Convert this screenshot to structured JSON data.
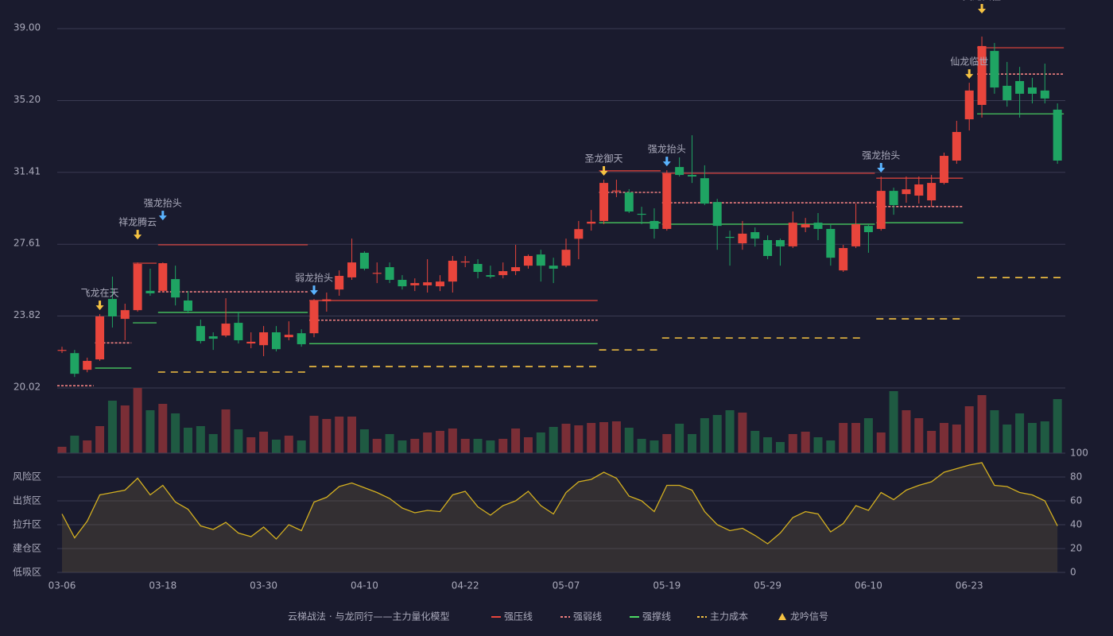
{
  "chart_data": [
    {
      "type": "candlestick",
      "categories": [
        "03-06",
        null,
        null,
        null,
        null,
        null,
        null,
        null,
        "03-18",
        null,
        null,
        null,
        null,
        null,
        null,
        null,
        "03-30",
        null,
        null,
        null,
        null,
        null,
        null,
        null,
        "04-10",
        null,
        null,
        null,
        null,
        null,
        null,
        null,
        "04-22",
        null,
        null,
        null,
        null,
        null,
        null,
        null,
        "05-07",
        null,
        null,
        null,
        null,
        null,
        null,
        null,
        "05-19",
        null,
        null,
        null,
        null,
        null,
        null,
        null,
        "05-29",
        null,
        null,
        null,
        null,
        null,
        null,
        null,
        "06-10",
        null,
        null,
        null,
        null,
        null,
        null,
        null,
        "06-23",
        null,
        null,
        null,
        null,
        null,
        null,
        null
      ],
      "open": [
        22.03,
        21.86,
        20.98,
        21.53,
        24.72,
        23.67,
        24.13,
        25.15,
        25.15,
        25.77,
        24.64,
        23.29,
        22.75,
        22.79,
        23.46,
        22.37,
        22.28,
        22.96,
        22.7,
        22.91,
        22.91,
        24.6,
        25.22,
        25.86,
        27.16,
        26.1,
        26.4,
        25.73,
        25.44,
        25.44,
        25.39,
        25.64,
        26.7,
        26.57,
        25.98,
        25.98,
        26.19,
        26.48,
        27.07,
        26.48,
        26.48,
        27.9,
        28.7,
        28.84,
        30.4,
        30.35,
        29.22,
        28.84,
        28.42,
        31.69,
        31.27,
        31.1,
        29.84,
        28.0,
        27.66,
        28.25,
        27.83,
        27.83,
        27.5,
        28.5,
        28.75,
        28.42,
        26.23,
        27.5,
        28.58,
        28.42,
        30.43,
        30.26,
        30.18,
        29.93,
        30.85,
        32.03,
        34.21,
        34.97,
        37.82,
        35.98,
        36.23,
        35.89,
        35.73,
        34.72
      ],
      "high": [
        22.2,
        22.03,
        21.62,
        23.92,
        25.9,
        24.47,
        26.65,
        26.32,
        26.65,
        26.48,
        25.14,
        23.63,
        22.96,
        24.76,
        24.05,
        22.96,
        23.29,
        23.29,
        23.54,
        23.12,
        24.72,
        25.06,
        26.23,
        27.91,
        27.24,
        26.65,
        26.65,
        25.98,
        25.81,
        26.82,
        25.98,
        26.99,
        26.99,
        26.82,
        26.48,
        26.65,
        27.58,
        27.07,
        27.32,
        26.9,
        27.91,
        28.84,
        29.42,
        31.02,
        31.02,
        30.52,
        29.59,
        29.51,
        31.52,
        32.2,
        33.37,
        31.78,
        30.01,
        28.33,
        28.84,
        28.5,
        28.08,
        27.91,
        29.34,
        29.0,
        29.26,
        28.67,
        27.58,
        29.76,
        28.67,
        31.19,
        30.6,
        31.19,
        31.19,
        31.27,
        32.45,
        34.13,
        36.14,
        38.58,
        38.24,
        37.24,
        36.98,
        36.4,
        37.15,
        35.05
      ],
      "low": [
        21.87,
        20.6,
        20.85,
        21.45,
        23.21,
        22.54,
        24.05,
        24.89,
        25.06,
        24.38,
        23.96,
        22.37,
        22.03,
        22.7,
        22.37,
        22.12,
        21.7,
        21.95,
        22.54,
        22.2,
        22.7,
        24.05,
        24.89,
        25.73,
        26.23,
        25.56,
        25.56,
        25.22,
        25.14,
        25.06,
        25.14,
        25.06,
        26.4,
        25.81,
        25.81,
        25.81,
        25.98,
        26.32,
        25.64,
        25.56,
        26.4,
        26.82,
        28.33,
        28.67,
        30.1,
        29.26,
        28.67,
        27.91,
        28.33,
        31.19,
        30.85,
        29.68,
        27.32,
        26.48,
        27.32,
        27.49,
        26.82,
        26.48,
        27.41,
        28.25,
        27.83,
        26.48,
        26.15,
        27.41,
        27.16,
        28.33,
        29.17,
        29.8,
        29.76,
        29.59,
        30.77,
        31.86,
        33.62,
        34.3,
        35.56,
        34.88,
        34.3,
        35.05,
        35.05,
        31.86
      ],
      "close": [
        22.03,
        20.77,
        21.45,
        23.8,
        23.8,
        24.13,
        26.57,
        25.02,
        26.61,
        24.8,
        24.09,
        22.5,
        22.62,
        23.42,
        22.54,
        22.46,
        22.96,
        22.07,
        22.83,
        22.33,
        24.64,
        24.7,
        25.94,
        26.65,
        26.32,
        26.1,
        25.73,
        25.39,
        25.56,
        25.6,
        25.64,
        26.74,
        26.7,
        26.15,
        25.9,
        26.19,
        26.4,
        26.99,
        26.48,
        26.32,
        27.32,
        28.41,
        28.8,
        30.85,
        30.45,
        29.34,
        29.17,
        28.42,
        31.36,
        31.27,
        31.19,
        29.76,
        28.58,
        27.95,
        28.17,
        27.91,
        26.99,
        27.5,
        28.75,
        28.67,
        28.42,
        26.9,
        27.41,
        28.67,
        28.25,
        30.43,
        29.68,
        30.51,
        30.77,
        30.85,
        32.28,
        33.54,
        35.73,
        38.08,
        35.89,
        35.22,
        35.56,
        35.56,
        35.31,
        32.03
      ],
      "up_color": "#e8453c",
      "down_color": "#1fa463",
      "ylim": [
        20.02,
        39.0
      ],
      "yticks": [
        20.02,
        23.82,
        27.61,
        31.41,
        {
          "value": 35.2,
          "label": "35.20"
        },
        {
          "value": 39.0,
          "label": "39.00"
        }
      ],
      "grid": true,
      "levels": [
        {
          "name": "强压线",
          "color": "#e8453c",
          "dash": "none",
          "segments": [
            {
              "from": 6,
              "to": 7,
              "value": 26.61
            },
            {
              "from": 8,
              "to": 19,
              "value": 27.58
            },
            {
              "from": 20,
              "to": 42,
              "value": 24.64
            },
            {
              "from": 43,
              "to": 47,
              "value": 31.49
            },
            {
              "from": 48,
              "to": 64,
              "value": 31.36
            },
            {
              "from": 65,
              "to": 71,
              "value": 31.1
            },
            {
              "from": 73,
              "to": 79,
              "value": 37.99
            }
          ]
        },
        {
          "name": "强弱线",
          "color": "#f08080",
          "dash": "3,2",
          "segments": [
            {
              "from": 0,
              "to": 2,
              "value": 20.14
            },
            {
              "from": 3,
              "to": 5,
              "value": 22.4
            },
            {
              "from": 8,
              "to": 19,
              "value": 25.1
            },
            {
              "from": 20,
              "to": 42,
              "value": 23.6
            },
            {
              "from": 43,
              "to": 47,
              "value": 30.35
            },
            {
              "from": 48,
              "to": 64,
              "value": 29.8
            },
            {
              "from": 65,
              "to": 71,
              "value": 29.6
            },
            {
              "from": 73,
              "to": 79,
              "value": 36.6
            }
          ]
        },
        {
          "name": "强撑线",
          "color": "#4cd964",
          "dash": "none",
          "segments": [
            {
              "from": 3,
              "to": 5,
              "value": 21.07
            },
            {
              "from": 6,
              "to": 7,
              "value": 23.46
            },
            {
              "from": 8,
              "to": 19,
              "value": 24.01
            },
            {
              "from": 20,
              "to": 42,
              "value": 22.36
            },
            {
              "from": 43,
              "to": 47,
              "value": 28.75
            },
            {
              "from": 48,
              "to": 64,
              "value": 28.67
            },
            {
              "from": 65,
              "to": 71,
              "value": 28.75
            },
            {
              "from": 73,
              "to": 79,
              "value": 34.5
            }
          ]
        },
        {
          "name": "主力成本",
          "color": "#f5c242",
          "dash": "9,7",
          "segments": [
            {
              "from": 8,
              "to": 19,
              "value": 20.86
            },
            {
              "from": 20,
              "to": 42,
              "value": 21.15
            },
            {
              "from": 43,
              "to": 47,
              "value": 22.03
            },
            {
              "from": 48,
              "to": 63,
              "value": 22.66
            },
            {
              "from": 65,
              "to": 71,
              "value": 23.67
            },
            {
              "from": 73,
              "to": 79,
              "value": 25.85
            }
          ]
        }
      ],
      "signals_name": "龙吟信号",
      "signals_color": "#f5c242",
      "signals": [
        {
          "label": "飞龙在天",
          "index": 3,
          "color": "#f5c242"
        },
        {
          "label": "祥龙腾云",
          "index": 6,
          "color": "#f5c242"
        },
        {
          "label": "强龙抬头",
          "index": 8,
          "color": "#5ab4ff"
        },
        {
          "label": "弱龙抬头",
          "index": 20,
          "color": "#5ab4ff"
        },
        {
          "label": "圣龙御天",
          "index": 43,
          "color": "#f5c242"
        },
        {
          "label": "强龙抬头",
          "index": 48,
          "color": "#5ab4ff"
        },
        {
          "label": "强龙抬头",
          "index": 65,
          "color": "#5ab4ff"
        },
        {
          "label": "仙龙临世",
          "index": 72,
          "color": "#f5c242"
        },
        {
          "label": "天龙归位",
          "index": 73,
          "color": "#f5c242"
        }
      ],
      "legend_title": "云梯战法 · 与龙同行——主力量化模型"
    },
    {
      "type": "bar",
      "values": [
        8,
        22,
        16,
        34,
        66,
        60,
        82,
        54,
        62,
        50,
        32,
        34,
        24,
        55,
        30,
        20,
        27,
        17,
        22,
        16,
        47,
        43,
        46,
        46,
        30,
        18,
        24,
        16,
        18,
        26,
        28,
        31,
        18,
        18,
        16,
        18,
        31,
        20,
        26,
        33,
        37,
        35,
        38,
        39,
        40,
        32,
        18,
        16,
        24,
        37,
        24,
        44,
        48,
        54,
        51,
        28,
        20,
        14,
        24,
        27,
        20,
        16,
        38,
        38,
        44,
        26,
        78,
        54,
        44,
        28,
        38,
        36,
        59,
        73,
        54,
        36,
        50,
        38,
        40,
        68
      ]
    },
    {
      "type": "line",
      "color": "#d4b020",
      "values": [
        49,
        29,
        43,
        65,
        67,
        69,
        79,
        65,
        73,
        59,
        53,
        39,
        36,
        42,
        33,
        30,
        38,
        28,
        40,
        35,
        59,
        63,
        72,
        75,
        71,
        67,
        62,
        54,
        50,
        52,
        51,
        65,
        68,
        55,
        48,
        56,
        60,
        68,
        56,
        49,
        67,
        76,
        78,
        84,
        79,
        64,
        60,
        51,
        73,
        73,
        69,
        51,
        40,
        35,
        37,
        31,
        24,
        33,
        46,
        51,
        49,
        34,
        41,
        56,
        52,
        67,
        61,
        69,
        73,
        76,
        84,
        87,
        90,
        92,
        73,
        72,
        67,
        65,
        60,
        39
      ],
      "ylim": [
        0,
        100
      ],
      "yticks": [
        0,
        20,
        40,
        60,
        80,
        100
      ],
      "ytick_colors": [
        "#e8453c",
        "#e8803c",
        "#e8a33c",
        "#e8803c",
        "#e8a33c",
        "#4cd964"
      ],
      "zones": [
        {
          "label": "风险区",
          "value": 80,
          "color": "#e8a33c"
        },
        {
          "label": "出货区",
          "value": 60,
          "color": "#e040e0"
        },
        {
          "label": "拉升区",
          "value": 40,
          "color": "#4a9bff"
        },
        {
          "label": "建仓区",
          "value": 20,
          "color": "#e05050"
        },
        {
          "label": "低吸区",
          "value": 0,
          "color": "#e8456a"
        }
      ]
    }
  ]
}
